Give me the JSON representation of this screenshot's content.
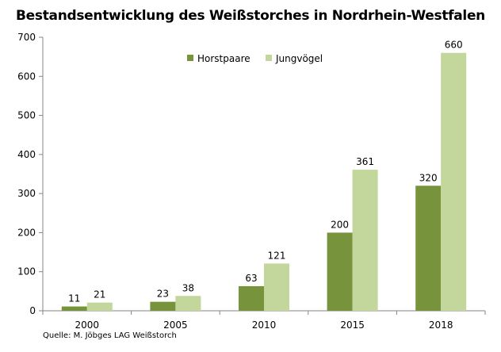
{
  "chart_data": {
    "type": "bar",
    "title": "Bestandsentwicklung des Weißstorches in Nordrhein-Westfalen",
    "source": "Quelle: M. Jöbges LAG Weißstorch",
    "categories": [
      "2000",
      "2005",
      "2010",
      "2015",
      "2018"
    ],
    "series": [
      {
        "name": "Horstpaare",
        "color": "#77933c",
        "values": [
          11,
          23,
          63,
          200,
          320
        ]
      },
      {
        "name": "Jungvögel",
        "color": "#c3d69b",
        "values": [
          21,
          38,
          121,
          361,
          660
        ]
      }
    ],
    "ylim": [
      0,
      700
    ],
    "yticks": [
      0,
      100,
      200,
      300,
      400,
      500,
      600,
      700
    ],
    "legend_position": "top-center",
    "grid": false,
    "data_labels": true
  }
}
